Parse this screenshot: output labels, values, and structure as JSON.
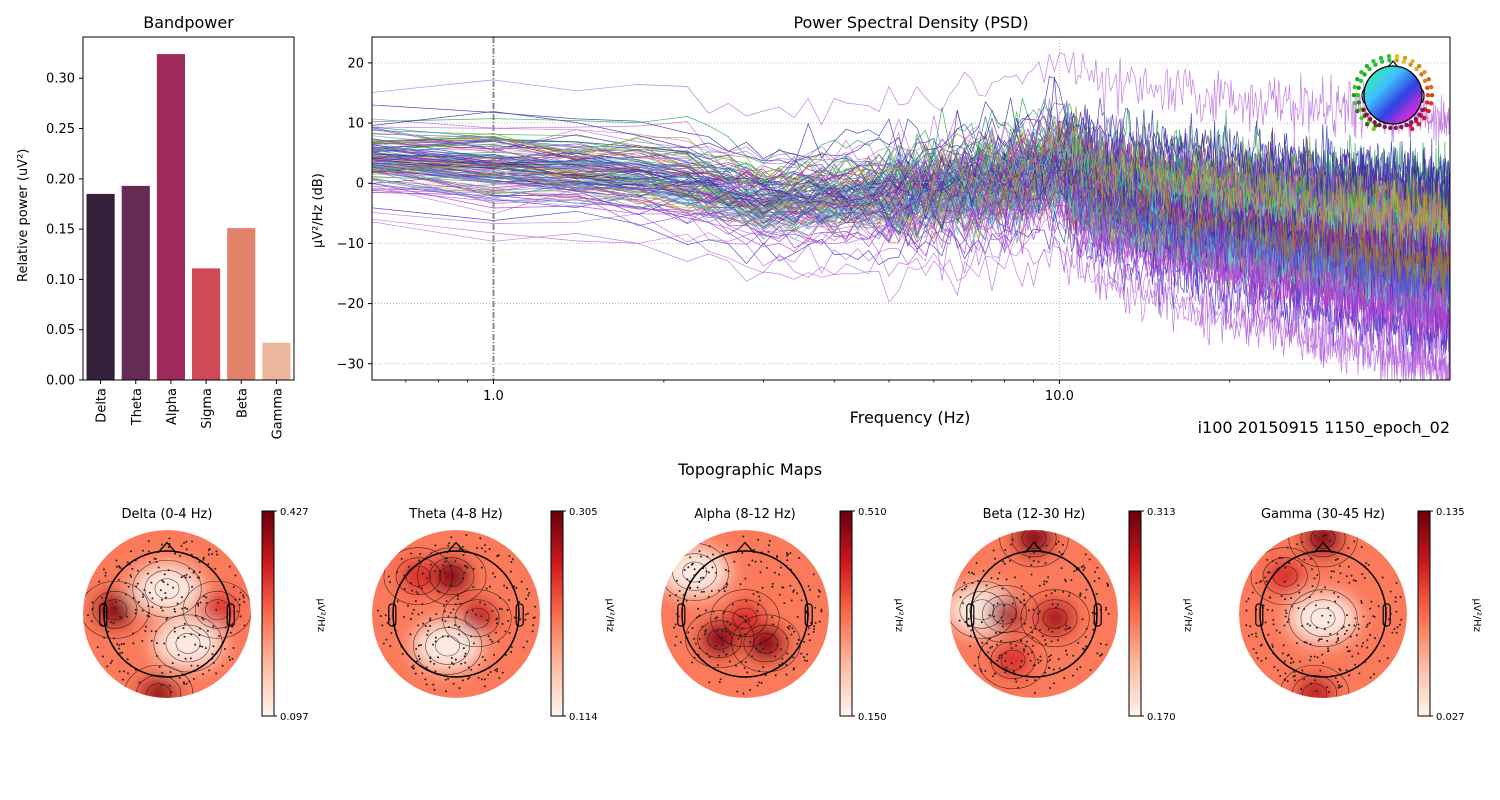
{
  "figure": {
    "recording_label": "i100 20150915 1150_epoch_02",
    "topomaps_title": "Topographic Maps"
  },
  "chart_data": [
    {
      "type": "bar",
      "title": "Bandpower",
      "xlabel": "",
      "ylabel": "Relative power (uV²)",
      "categories": [
        "Delta",
        "Theta",
        "Alpha",
        "Sigma",
        "Beta",
        "Gamma"
      ],
      "values": [
        0.185,
        0.193,
        0.324,
        0.111,
        0.151,
        0.037
      ],
      "colors": [
        "#35203b",
        "#672a52",
        "#9e2a5c",
        "#cf4a56",
        "#e3826a",
        "#ebb69c"
      ],
      "ylim": [
        0,
        0.341
      ],
      "yticks": [
        0.0,
        0.05,
        0.1,
        0.15,
        0.2,
        0.25,
        0.3
      ],
      "ytick_labels": [
        "0.00",
        "0.05",
        "0.10",
        "0.15",
        "0.20",
        "0.25",
        "0.30"
      ],
      "grid": false
    },
    {
      "type": "line",
      "title": "Power Spectral Density (PSD)",
      "xlabel": "Frequency (Hz)",
      "ylabel": "µV²/Hz (dB)",
      "xscale": "log",
      "xlim": [
        0.61,
        49
      ],
      "ylim": [
        -32.7,
        24.3
      ],
      "xticks": [
        1.0,
        10.0
      ],
      "xtick_labels": [
        "1.0",
        "10.0"
      ],
      "yticks": [
        -30,
        -20,
        -10,
        0,
        10,
        20
      ],
      "ytick_labels": [
        "−30",
        "−20",
        "−10",
        "0",
        "10",
        "20"
      ],
      "grid": true,
      "vertical_marker_hz": 1.0,
      "n_channels": 256,
      "series_summary": {
        "description": "one line per EEG channel, colored by sensor location (spatial colormap)",
        "mean_db_at_freq": [
          [
            0.61,
            4
          ],
          [
            1.0,
            3
          ],
          [
            2.0,
            1
          ],
          [
            3.0,
            -3
          ],
          [
            5.0,
            -2
          ],
          [
            8.0,
            0
          ],
          [
            10.0,
            3
          ],
          [
            12.0,
            -2
          ],
          [
            20.0,
            -6
          ],
          [
            30.0,
            -9
          ],
          [
            49.0,
            -12
          ]
        ],
        "spread_db": [
          [
            0.61,
            4
          ],
          [
            1.0,
            5
          ],
          [
            3.0,
            5
          ],
          [
            10.0,
            6
          ],
          [
            20.0,
            7
          ],
          [
            49.0,
            8
          ]
        ],
        "alpha_peak_hz": 10.0,
        "max_db": 21,
        "min_db": -30
      },
      "legend": "sensor-layout inset, top-right"
    },
    {
      "type": "heatmap",
      "subtype": "topomap",
      "title": "Topographic Maps",
      "colormap": "Reds",
      "colorbar_label": "µV²/Hz",
      "maps": [
        {
          "title": "Delta (0-4 Hz)",
          "vmax": "0.427",
          "vmin": "0.097",
          "hotspots": [
            {
              "region": "left-temporal",
              "level": 0.95
            },
            {
              "region": "occipital-inferior",
              "level": 0.9
            },
            {
              "region": "right-temporal",
              "level": 0.7
            }
          ],
          "coldspots": [
            {
              "region": "frontal-central",
              "level": 0.05
            },
            {
              "region": "right-parietal",
              "level": 0.05
            }
          ]
        },
        {
          "title": "Theta (4-8 Hz)",
          "vmax": "0.305",
          "vmin": "0.114",
          "hotspots": [
            {
              "region": "frontal-midline",
              "level": 0.95
            },
            {
              "region": "right-central",
              "level": 0.8
            },
            {
              "region": "left-frontal",
              "level": 0.7
            }
          ],
          "coldspots": [
            {
              "region": "parietal",
              "level": 0.05
            }
          ]
        },
        {
          "title": "Alpha (8-12 Hz)",
          "vmax": "0.510",
          "vmin": "0.150",
          "hotspots": [
            {
              "region": "left-parietal",
              "level": 0.95
            },
            {
              "region": "right-parietal",
              "level": 0.95
            },
            {
              "region": "central",
              "level": 0.7
            }
          ],
          "coldspots": [
            {
              "region": "periphery-frontal",
              "level": 0.05
            }
          ]
        },
        {
          "title": "Beta (12-30 Hz)",
          "vmax": "0.313",
          "vmin": "0.170",
          "hotspots": [
            {
              "region": "frontal-pole",
              "level": 0.95
            },
            {
              "region": "left-central",
              "level": 0.85
            },
            {
              "region": "right-central",
              "level": 0.85
            },
            {
              "region": "left-occipital",
              "level": 0.7
            }
          ],
          "coldspots": [
            {
              "region": "left-temporal",
              "level": 0.05
            }
          ]
        },
        {
          "title": "Gamma (30-45 Hz)",
          "vmax": "0.135",
          "vmin": "0.027",
          "hotspots": [
            {
              "region": "frontal-pole",
              "level": 0.95
            },
            {
              "region": "occipital-inferior",
              "level": 0.8
            },
            {
              "region": "left-frontal",
              "level": 0.7
            }
          ],
          "coldspots": [
            {
              "region": "central",
              "level": 0.05
            }
          ]
        }
      ]
    }
  ]
}
